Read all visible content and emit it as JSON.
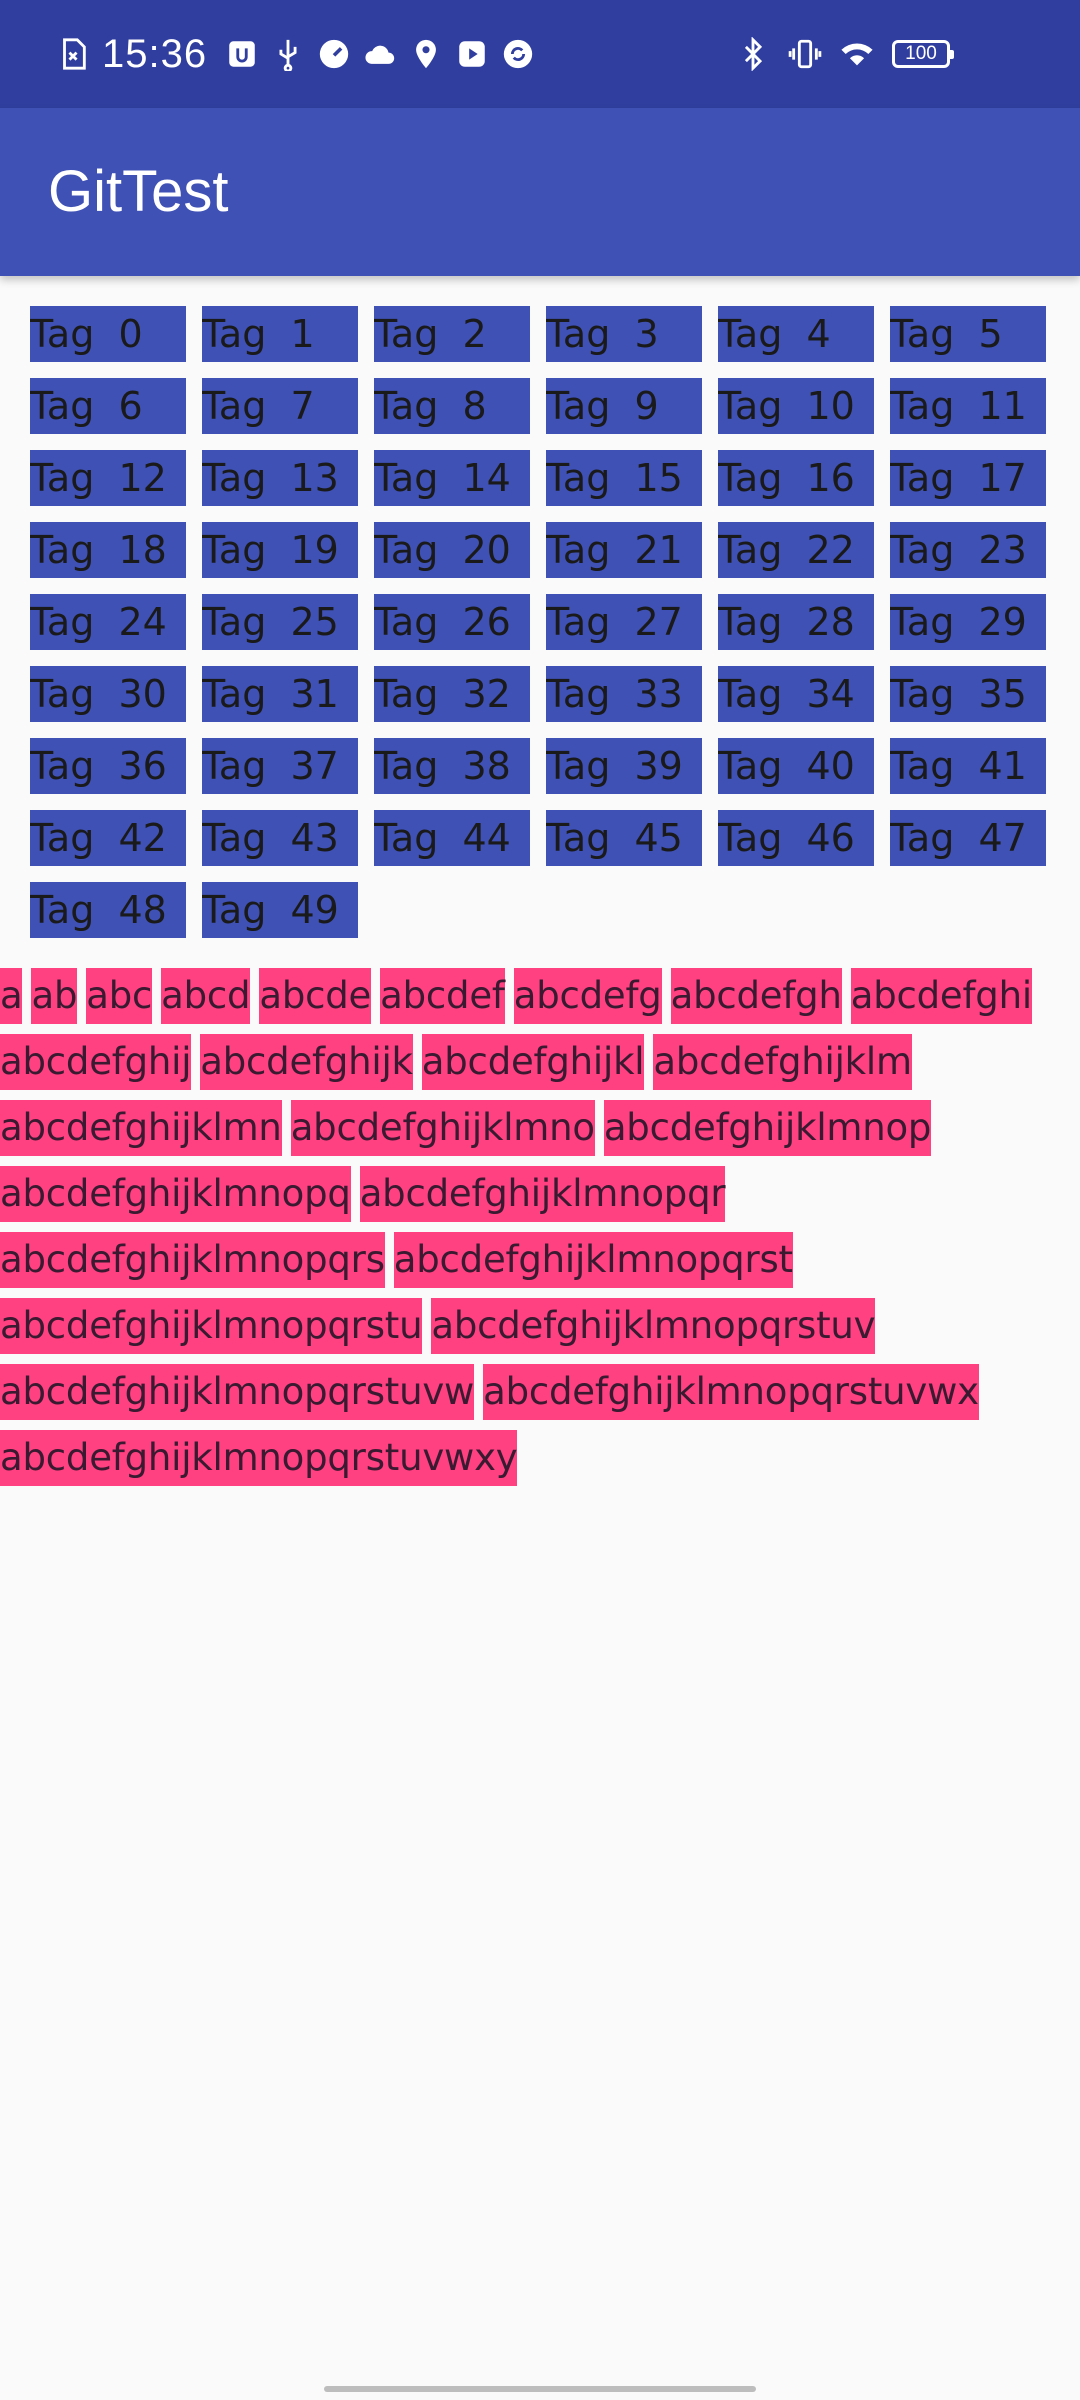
{
  "status_bar": {
    "time": "15:36",
    "battery": "100",
    "left_icons": [
      "sim-card-icon",
      "usb-debug-icon",
      "usb-icon",
      "speedometer-icon",
      "cloud-icon",
      "location-pin-icon",
      "play-store-icon",
      "sync-icon"
    ],
    "right_icons": [
      "bluetooth-icon",
      "vibrate-icon",
      "wifi-icon"
    ]
  },
  "app_bar": {
    "title": "GitTest",
    "color": "#3F51B5"
  },
  "tags": {
    "color": "#3F51B5",
    "items": [
      "Tag  0",
      "Tag  1",
      "Tag  2",
      "Tag  3",
      "Tag  4",
      "Tag  5",
      "Tag  6",
      "Tag  7",
      "Tag  8",
      "Tag  9",
      "Tag  10",
      "Tag  11",
      "Tag  12",
      "Tag  13",
      "Tag  14",
      "Tag  15",
      "Tag  16",
      "Tag  17",
      "Tag  18",
      "Tag  19",
      "Tag  20",
      "Tag  21",
      "Tag  22",
      "Tag  23",
      "Tag  24",
      "Tag  25",
      "Tag  26",
      "Tag  27",
      "Tag  28",
      "Tag  29",
      "Tag  30",
      "Tag  31",
      "Tag  32",
      "Tag  33",
      "Tag  34",
      "Tag  35",
      "Tag  36",
      "Tag  37",
      "Tag  38",
      "Tag  39",
      "Tag  40",
      "Tag  41",
      "Tag  42",
      "Tag  43",
      "Tag  44",
      "Tag  45",
      "Tag  46",
      "Tag  47",
      "Tag  48",
      "Tag  49"
    ]
  },
  "words": {
    "color": "#FF4081",
    "items": [
      "a",
      "ab",
      "abc",
      "abcd",
      "abcde",
      "abcdef",
      "abcdefg",
      "abcdefgh",
      "abcdefghi",
      "abcdefghij",
      "abcdefghijk",
      "abcdefghijkl",
      "abcdefghijklm",
      "abcdefghijklmn",
      "abcdefghijklmno",
      "abcdefghijklmnop",
      "abcdefghijklmnopq",
      "abcdefghijklmnopqr",
      "abcdefghijklmnopqrs",
      "abcdefghijklmnopqrst",
      "abcdefghijklmnopqrstu",
      "abcdefghijklmnopqrstuv",
      "abcdefghijklmnopqrstuvw",
      "abcdefghijklmnopqrstuvwx",
      "abcdefghijklmnopqrstuvwxy"
    ]
  }
}
